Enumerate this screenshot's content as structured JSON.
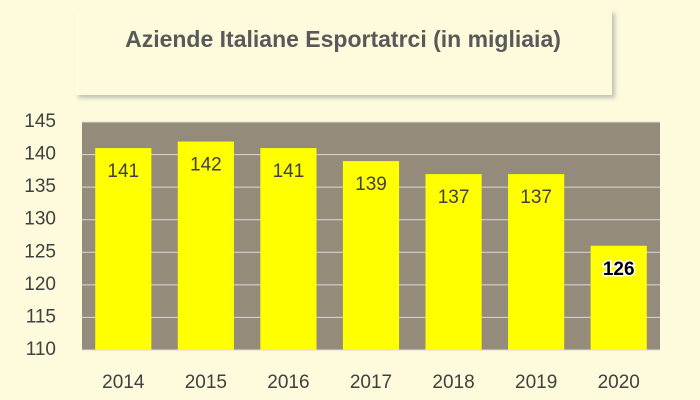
{
  "chart_data": {
    "type": "bar",
    "title": "Aziende Italiane Esportatrci (in migliaia)",
    "categories": [
      "2014",
      "2015",
      "2016",
      "2017",
      "2018",
      "2019",
      "2020"
    ],
    "values": [
      141,
      142,
      141,
      139,
      137,
      137,
      126
    ],
    "color": "#ffff00",
    "ylim": [
      110,
      145
    ],
    "yticks": [
      110,
      115,
      120,
      125,
      130,
      135,
      140,
      145
    ],
    "grid": true
  }
}
